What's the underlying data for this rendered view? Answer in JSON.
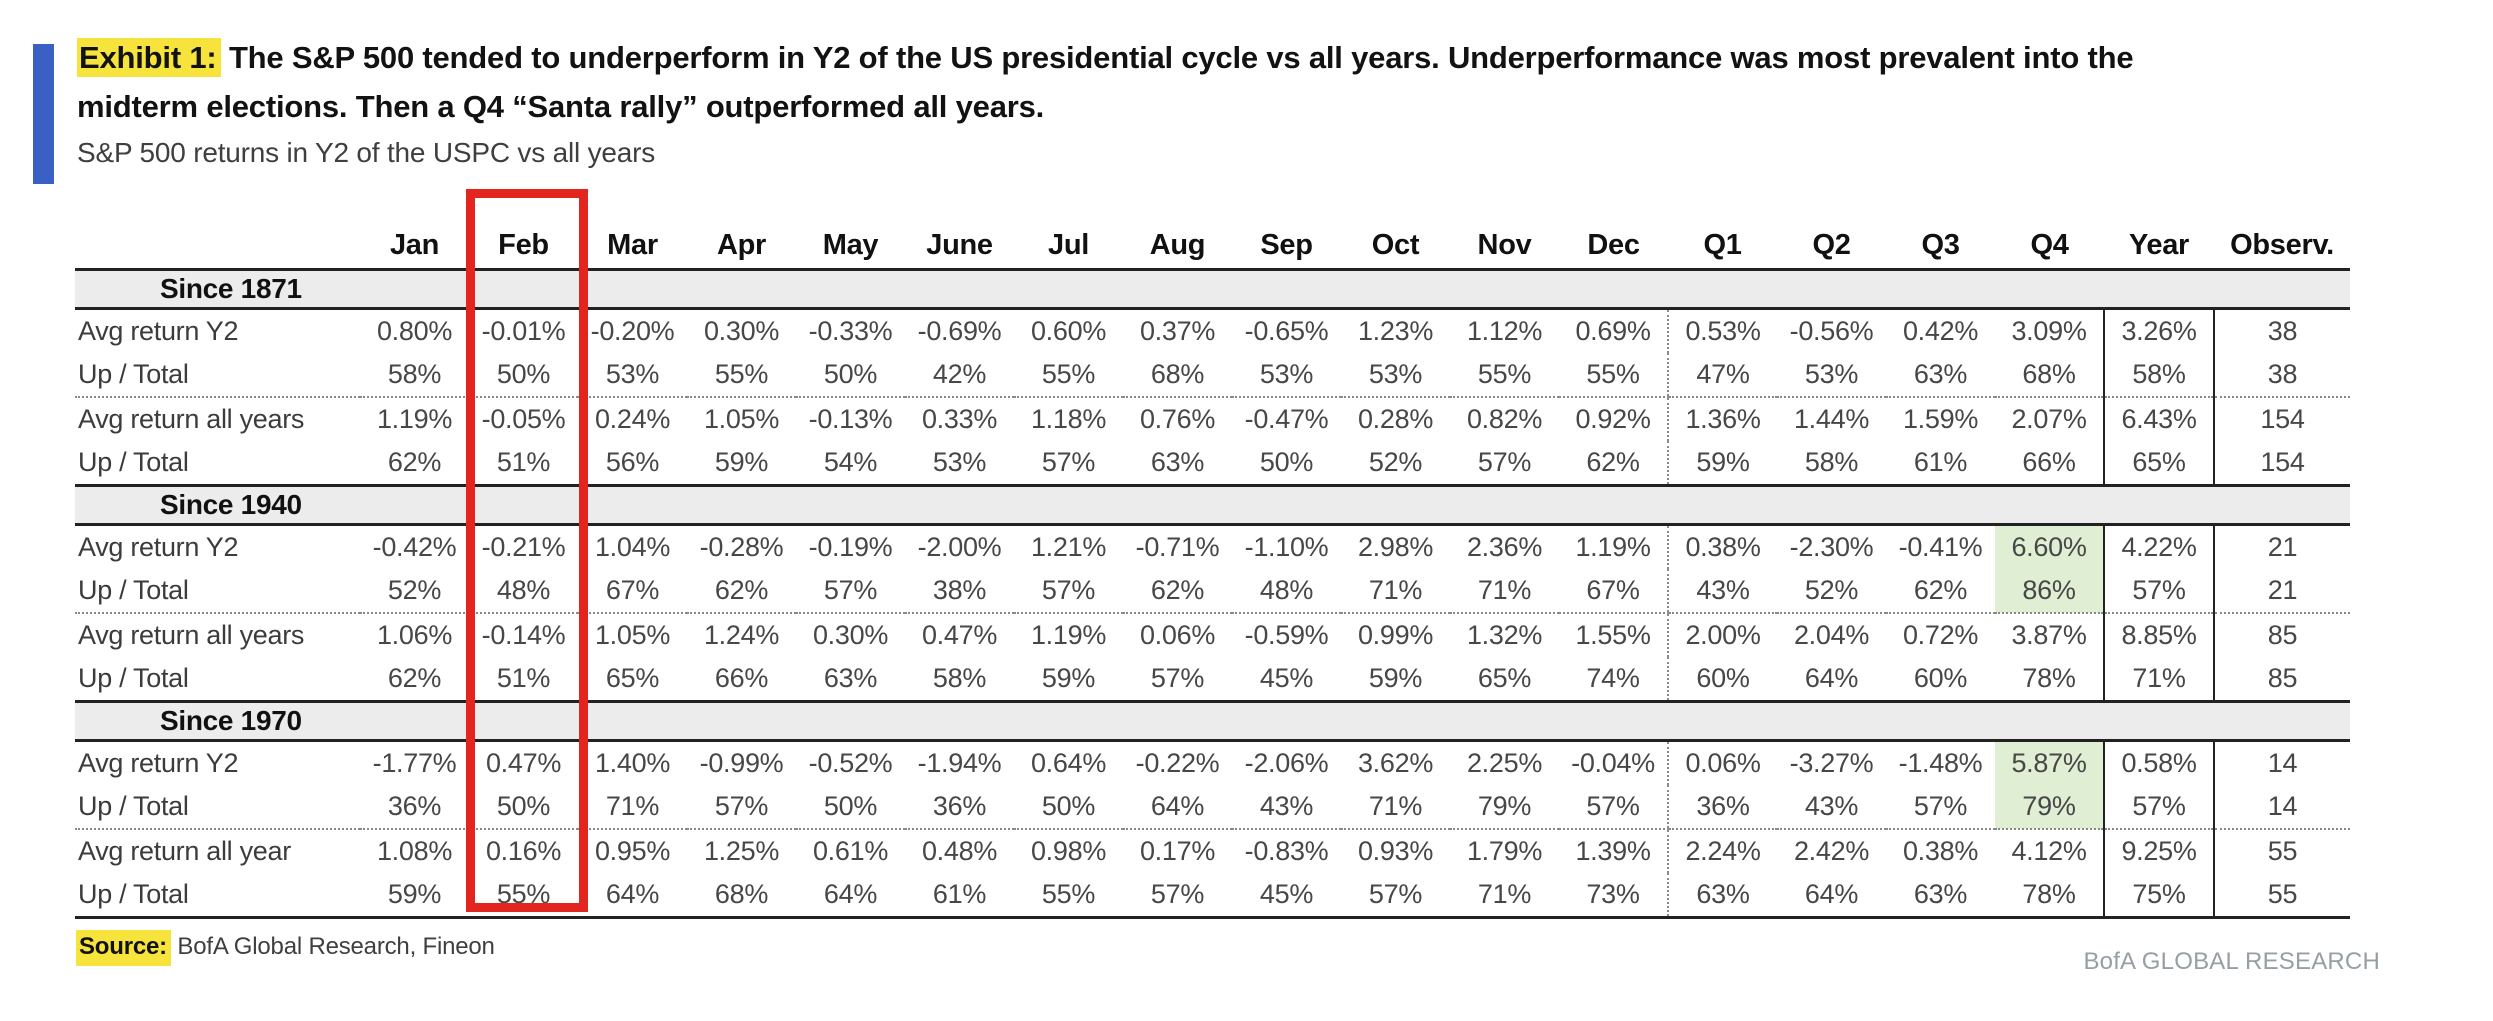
{
  "exhibit": {
    "label": "Exhibit 1:",
    "line1": "The S&P 500 tended to underperform in Y2 of the US presidential cycle vs all years. Underperformance was most prevalent into the",
    "line2": "midterm elections. Then a Q4 “Santa rally” outperformed all years.",
    "subtitle": "S&P 500 returns in Y2 of the USPC vs all years"
  },
  "colors": {
    "accent_blue": "#3a5fc5",
    "marker_yellow": "#f6e33c",
    "annotation_box_red": "#e2251f",
    "positive_green": "#79ae67",
    "negative_red": "#c05551",
    "q4_highlight_bg": "#e0efd4",
    "section_band_bg": "#ececec"
  },
  "annotation": {
    "highlighted_column": "Feb"
  },
  "table": {
    "columns": [
      "Jan",
      "Feb",
      "Mar",
      "Apr",
      "May",
      "June",
      "Jul",
      "Aug",
      "Sep",
      "Oct",
      "Nov",
      "Dec",
      "Q1",
      "Q2",
      "Q3",
      "Q4",
      "Year",
      "Observ."
    ],
    "sections": [
      {
        "header": "Since 1871",
        "rows": [
          {
            "label": "Avg return Y2",
            "cells": [
              [
                "0.80%",
                ""
              ],
              [
                "-0.01%",
                ""
              ],
              [
                "-0.20%",
                ""
              ],
              [
                "0.30%",
                ""
              ],
              [
                "-0.33%",
                ""
              ],
              [
                "-0.69%",
                "r"
              ],
              [
                "0.60%",
                ""
              ],
              [
                "0.37%",
                ""
              ],
              [
                "-0.65%",
                ""
              ],
              [
                "1.23%",
                ""
              ],
              [
                "1.12%",
                ""
              ],
              [
                "0.69%",
                ""
              ],
              [
                "0.53%",
                ""
              ],
              [
                "-0.56%",
                ""
              ],
              [
                "0.42%",
                ""
              ],
              [
                "3.09%",
                "g"
              ],
              [
                "3.26%",
                "r"
              ],
              [
                "38",
                ""
              ]
            ]
          },
          {
            "label": "Up / Total",
            "cells": [
              [
                "58%",
                ""
              ],
              [
                "50%",
                ""
              ],
              [
                "53%",
                ""
              ],
              [
                "55%",
                ""
              ],
              [
                "50%",
                ""
              ],
              [
                "42%",
                "r"
              ],
              [
                "55%",
                ""
              ],
              [
                "68%",
                ""
              ],
              [
                "53%",
                ""
              ],
              [
                "53%",
                ""
              ],
              [
                "55%",
                ""
              ],
              [
                "55%",
                ""
              ],
              [
                "47%",
                ""
              ],
              [
                "53%",
                ""
              ],
              [
                "63%",
                ""
              ],
              [
                "68%",
                "g"
              ],
              [
                "58%",
                "r"
              ],
              [
                "38",
                ""
              ]
            ]
          },
          {
            "label": "Avg return all years",
            "cells": [
              [
                "1.19%",
                ""
              ],
              [
                "-0.05%",
                ""
              ],
              [
                "0.24%",
                ""
              ],
              [
                "1.05%",
                ""
              ],
              [
                "-0.13%",
                ""
              ],
              [
                "0.33%",
                ""
              ],
              [
                "1.18%",
                ""
              ],
              [
                "0.76%",
                ""
              ],
              [
                "-0.47%",
                ""
              ],
              [
                "0.28%",
                ""
              ],
              [
                "0.82%",
                ""
              ],
              [
                "0.92%",
                ""
              ],
              [
                "1.36%",
                ""
              ],
              [
                "1.44%",
                ""
              ],
              [
                "1.59%",
                ""
              ],
              [
                "2.07%",
                "g"
              ],
              [
                "6.43%",
                "g"
              ],
              [
                "154",
                ""
              ]
            ]
          },
          {
            "label": "Up / Total",
            "cells": [
              [
                "62%",
                ""
              ],
              [
                "51%",
                ""
              ],
              [
                "56%",
                ""
              ],
              [
                "59%",
                ""
              ],
              [
                "54%",
                ""
              ],
              [
                "53%",
                ""
              ],
              [
                "57%",
                ""
              ],
              [
                "63%",
                ""
              ],
              [
                "50%",
                ""
              ],
              [
                "52%",
                ""
              ],
              [
                "57%",
                ""
              ],
              [
                "62%",
                ""
              ],
              [
                "59%",
                ""
              ],
              [
                "58%",
                ""
              ],
              [
                "61%",
                ""
              ],
              [
                "66%",
                "g"
              ],
              [
                "65%",
                "g"
              ],
              [
                "154",
                ""
              ]
            ]
          }
        ]
      },
      {
        "header": "Since 1940",
        "rows": [
          {
            "label": "Avg return Y2",
            "cells": [
              [
                "-0.42%",
                "r"
              ],
              [
                "-0.21%",
                ""
              ],
              [
                "1.04%",
                "g"
              ],
              [
                "-0.28%",
                ""
              ],
              [
                "-0.19%",
                ""
              ],
              [
                "-2.00%",
                "r"
              ],
              [
                "1.21%",
                ""
              ],
              [
                "-0.71%",
                ""
              ],
              [
                "-1.10%",
                ""
              ],
              [
                "2.98%",
                "g"
              ],
              [
                "2.36%",
                "g"
              ],
              [
                "1.19%",
                "g"
              ],
              [
                "0.38%",
                ""
              ],
              [
                "-2.30%",
                ""
              ],
              [
                "-0.41%",
                ""
              ],
              [
                "6.60%",
                "gh"
              ],
              [
                "4.22%",
                "r"
              ],
              [
                "21",
                ""
              ]
            ]
          },
          {
            "label": "Up / Total",
            "cells": [
              [
                "52%",
                "r"
              ],
              [
                "48%",
                ""
              ],
              [
                "67%",
                "g"
              ],
              [
                "62%",
                ""
              ],
              [
                "57%",
                ""
              ],
              [
                "38%",
                "r"
              ],
              [
                "57%",
                ""
              ],
              [
                "62%",
                ""
              ],
              [
                "48%",
                ""
              ],
              [
                "71%",
                "g"
              ],
              [
                "71%",
                "g"
              ],
              [
                "67%",
                "g"
              ],
              [
                "43%",
                ""
              ],
              [
                "52%",
                ""
              ],
              [
                "62%",
                ""
              ],
              [
                "86%",
                "gh"
              ],
              [
                "57%",
                "r"
              ],
              [
                "21",
                ""
              ]
            ]
          },
          {
            "label": "Avg return all years",
            "cells": [
              [
                "1.06%",
                ""
              ],
              [
                "-0.14%",
                ""
              ],
              [
                "1.05%",
                ""
              ],
              [
                "1.24%",
                ""
              ],
              [
                "0.30%",
                ""
              ],
              [
                "0.47%",
                ""
              ],
              [
                "1.19%",
                ""
              ],
              [
                "0.06%",
                ""
              ],
              [
                "-0.59%",
                ""
              ],
              [
                "0.99%",
                ""
              ],
              [
                "1.32%",
                "g"
              ],
              [
                "1.55%",
                "g"
              ],
              [
                "2.00%",
                ""
              ],
              [
                "2.04%",
                ""
              ],
              [
                "0.72%",
                ""
              ],
              [
                "3.87%",
                "g"
              ],
              [
                "8.85%",
                "g"
              ],
              [
                "85",
                ""
              ]
            ]
          },
          {
            "label": "Up / Total",
            "cells": [
              [
                "62%",
                ""
              ],
              [
                "51%",
                ""
              ],
              [
                "65%",
                ""
              ],
              [
                "66%",
                ""
              ],
              [
                "63%",
                ""
              ],
              [
                "58%",
                ""
              ],
              [
                "59%",
                ""
              ],
              [
                "57%",
                ""
              ],
              [
                "45%",
                ""
              ],
              [
                "59%",
                ""
              ],
              [
                "65%",
                "g"
              ],
              [
                "74%",
                "g"
              ],
              [
                "60%",
                ""
              ],
              [
                "64%",
                ""
              ],
              [
                "60%",
                ""
              ],
              [
                "78%",
                "g"
              ],
              [
                "71%",
                "g"
              ],
              [
                "85",
                ""
              ]
            ]
          }
        ]
      },
      {
        "header": "Since 1970",
        "rows": [
          {
            "label": "Avg return Y2",
            "cells": [
              [
                "-1.77%",
                "r"
              ],
              [
                "0.47%",
                ""
              ],
              [
                "1.40%",
                "g"
              ],
              [
                "-0.99%",
                ""
              ],
              [
                "-0.52%",
                ""
              ],
              [
                "-1.94%",
                "r"
              ],
              [
                "0.64%",
                ""
              ],
              [
                "-0.22%",
                ""
              ],
              [
                "-2.06%",
                ""
              ],
              [
                "3.62%",
                "g"
              ],
              [
                "2.25%",
                "g"
              ],
              [
                "-0.04%",
                ""
              ],
              [
                "0.06%",
                ""
              ],
              [
                "-3.27%",
                ""
              ],
              [
                "-1.48%",
                ""
              ],
              [
                "5.87%",
                "gh"
              ],
              [
                "0.58%",
                "r"
              ],
              [
                "14",
                ""
              ]
            ]
          },
          {
            "label": "Up / Total",
            "cells": [
              [
                "36%",
                "r"
              ],
              [
                "50%",
                ""
              ],
              [
                "71%",
                "g"
              ],
              [
                "57%",
                ""
              ],
              [
                "50%",
                ""
              ],
              [
                "36%",
                "r"
              ],
              [
                "50%",
                ""
              ],
              [
                "64%",
                ""
              ],
              [
                "43%",
                ""
              ],
              [
                "71%",
                "g"
              ],
              [
                "79%",
                "g"
              ],
              [
                "57%",
                ""
              ],
              [
                "36%",
                ""
              ],
              [
                "43%",
                ""
              ],
              [
                "57%",
                ""
              ],
              [
                "79%",
                "gh"
              ],
              [
                "57%",
                "r"
              ],
              [
                "14",
                ""
              ]
            ]
          },
          {
            "label": "Avg return all year",
            "cells": [
              [
                "1.08%",
                ""
              ],
              [
                "0.16%",
                ""
              ],
              [
                "0.95%",
                ""
              ],
              [
                "1.25%",
                ""
              ],
              [
                "0.61%",
                ""
              ],
              [
                "0.48%",
                ""
              ],
              [
                "0.98%",
                ""
              ],
              [
                "0.17%",
                ""
              ],
              [
                "-0.83%",
                ""
              ],
              [
                "0.93%",
                ""
              ],
              [
                "1.79%",
                ""
              ],
              [
                "1.39%",
                ""
              ],
              [
                "2.24%",
                ""
              ],
              [
                "2.42%",
                ""
              ],
              [
                "0.38%",
                ""
              ],
              [
                "4.12%",
                "g"
              ],
              [
                "9.25%",
                "g"
              ],
              [
                "55",
                ""
              ]
            ]
          },
          {
            "label": "Up / Total",
            "cells": [
              [
                "59%",
                ""
              ],
              [
                "55%",
                ""
              ],
              [
                "64%",
                ""
              ],
              [
                "68%",
                ""
              ],
              [
                "64%",
                ""
              ],
              [
                "61%",
                ""
              ],
              [
                "55%",
                ""
              ],
              [
                "57%",
                ""
              ],
              [
                "45%",
                ""
              ],
              [
                "57%",
                ""
              ],
              [
                "71%",
                ""
              ],
              [
                "73%",
                ""
              ],
              [
                "63%",
                ""
              ],
              [
                "64%",
                ""
              ],
              [
                "63%",
                ""
              ],
              [
                "78%",
                "g"
              ],
              [
                "75%",
                "g"
              ],
              [
                "55",
                ""
              ]
            ]
          }
        ]
      }
    ]
  },
  "source": {
    "label": "Source:",
    "text": " BofA Global Research, Fineon"
  },
  "footer": {
    "brand": "BofA GLOBAL RESEARCH"
  }
}
